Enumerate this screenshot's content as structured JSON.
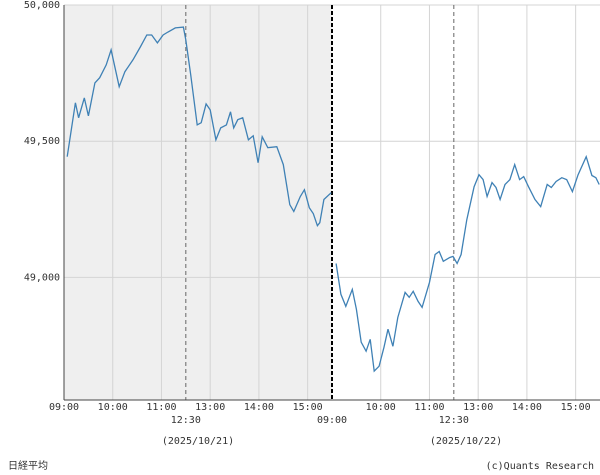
{
  "chart_data": {
    "type": "line",
    "source": "(c)Quants Research",
    "index_name": "日経平均",
    "dates": [
      "(2025/10/21)",
      "(2025/10/22)"
    ],
    "day_divider": 330,
    "lunch_lines": [
      150,
      480
    ],
    "shaded_range": [
      0,
      330
    ],
    "grid": true,
    "xlim": [
      0,
      660
    ],
    "ylim": [
      48550,
      50000
    ],
    "yticks": [
      {
        "value": 49000,
        "label": "49,000"
      },
      {
        "value": 49500,
        "label": "49,500"
      },
      {
        "value": 50000,
        "label": "50,000"
      }
    ],
    "xticks": [
      {
        "value": 0,
        "label": "09:00"
      },
      {
        "value": 60,
        "label": "10:00"
      },
      {
        "value": 120,
        "label": "11:00"
      },
      {
        "value": 150,
        "label": "12:30"
      },
      {
        "value": 180,
        "label": "13:00"
      },
      {
        "value": 240,
        "label": "14:00"
      },
      {
        "value": 300,
        "label": "15:00"
      },
      {
        "value": 330,
        "label": "09:00"
      },
      {
        "value": 390,
        "label": "10:00"
      },
      {
        "value": 450,
        "label": "11:00"
      },
      {
        "value": 480,
        "label": "12:30"
      },
      {
        "value": 510,
        "label": "13:00"
      },
      {
        "value": 570,
        "label": "14:00"
      },
      {
        "value": 630,
        "label": "15:00"
      }
    ],
    "series": [
      {
        "color": "#3f81b5",
        "x": [
          4,
          14,
          18,
          25,
          30,
          38,
          44,
          52,
          58,
          68,
          75,
          85,
          94,
          102,
          108,
          115,
          122,
          128,
          137,
          147,
          150,
          156,
          164,
          169,
          175,
          180,
          187,
          193,
          200,
          205,
          209,
          214,
          220,
          227,
          233,
          239,
          244,
          251,
          262,
          270,
          278,
          283,
          291,
          296,
          302,
          307,
          312,
          315,
          320,
          329,
          332,
          335,
          341,
          347,
          355,
          360,
          366,
          372,
          377,
          382,
          388,
          394,
          399,
          405,
          411,
          420,
          425,
          430,
          436,
          441,
          450,
          457,
          462,
          467,
          475,
          479,
          484,
          489,
          496,
          505,
          511,
          516,
          521,
          527,
          532,
          537,
          543,
          549,
          555,
          561,
          566,
          572,
          580,
          587,
          595,
          600,
          606,
          613,
          619,
          626,
          633,
          643,
          650,
          655,
          659
        ],
        "values": [
          49443,
          49641,
          49586,
          49659,
          49593,
          49714,
          49733,
          49780,
          49835,
          49700,
          49755,
          49799,
          49846,
          49890,
          49890,
          49861,
          49890,
          49901,
          49916,
          49919,
          49872,
          49744,
          49560,
          49568,
          49637,
          49615,
          49505,
          49549,
          49560,
          49608,
          49549,
          49579,
          49586,
          49505,
          49520,
          49421,
          49516,
          49476,
          49480,
          49414,
          49267,
          49242,
          49297,
          49322,
          49256,
          49234,
          49190,
          49201,
          49286,
          49311,
          null,
          49051,
          48938,
          48894,
          48956,
          48883,
          48762,
          48729,
          48773,
          48656,
          48674,
          48744,
          48810,
          48747,
          48853,
          48945,
          48927,
          48949,
          48912,
          48890,
          48982,
          49084,
          49095,
          49059,
          49073,
          49077,
          49051,
          49084,
          49212,
          49333,
          49377,
          49359,
          49297,
          49348,
          49330,
          49286,
          49341,
          49359,
          49414,
          49359,
          49370,
          49333,
          49286,
          49260,
          49341,
          49330,
          49352,
          49366,
          49359,
          49315,
          49377,
          49443,
          49374,
          49366,
          49341
        ]
      }
    ]
  }
}
